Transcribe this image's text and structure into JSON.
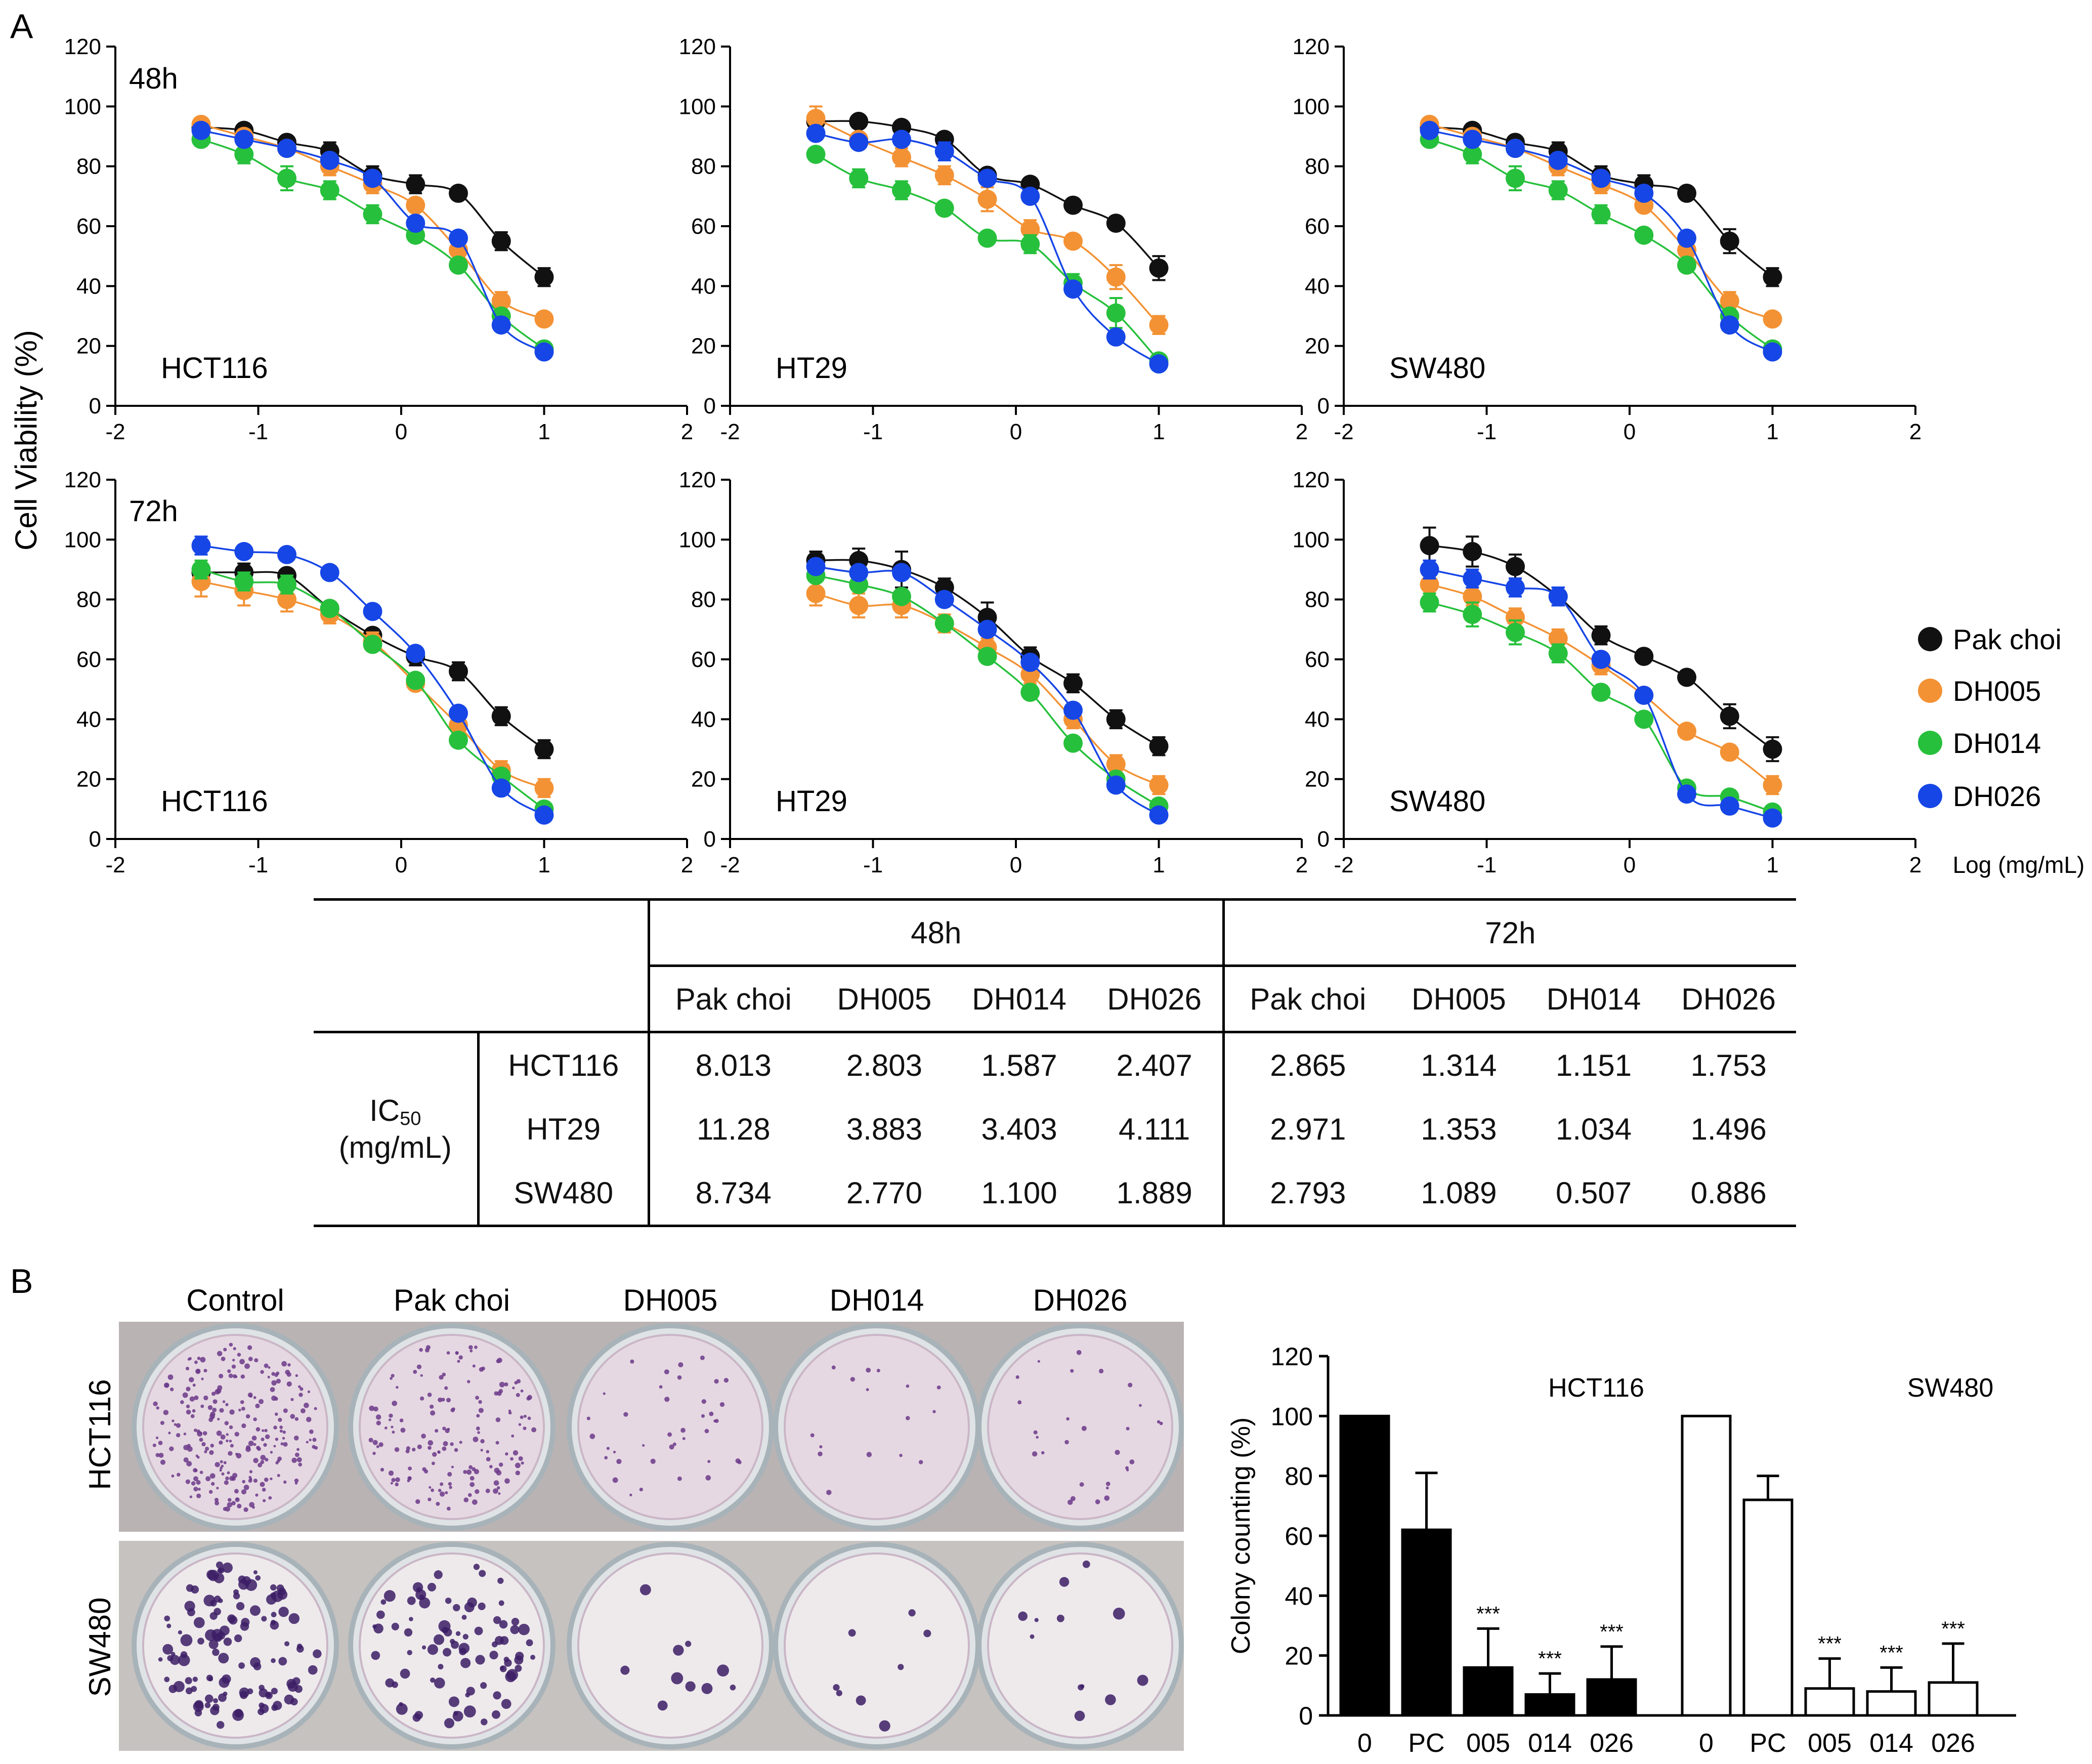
{
  "panel_labels": {
    "a": "A",
    "b": "B"
  },
  "y_axis_label": "Cell Viability (%)",
  "x_axis_label": "Log (mg/mL)",
  "time_labels": {
    "h48": "48h",
    "h72": "72h"
  },
  "legend": [
    {
      "name": "Pak choi",
      "color": "#111111"
    },
    {
      "name": "DH005",
      "color": "#f39234"
    },
    {
      "name": "DH014",
      "color": "#27c03c"
    },
    {
      "name": "DH026",
      "color": "#1646e6"
    }
  ],
  "ic50_table": {
    "groups": [
      "48h",
      "72h"
    ],
    "columns": [
      "Pak choi",
      "DH005",
      "DH014",
      "DH026",
      "Pak choi",
      "DH005",
      "DH014",
      "DH026"
    ],
    "row_header_main": "IC",
    "row_header_sub": "50",
    "row_header_unit": "(mg/mL)",
    "rows": [
      {
        "cell": "HCT116",
        "values": [
          "8.013",
          "2.803",
          "1.587",
          "2.407",
          "2.865",
          "1.314",
          "1.151",
          "1.753"
        ]
      },
      {
        "cell": "HT29",
        "values": [
          "11.28",
          "3.883",
          "3.403",
          "4.111",
          "2.971",
          "1.353",
          "1.034",
          "1.496"
        ]
      },
      {
        "cell": "SW480",
        "values": [
          "8.734",
          "2.770",
          "1.100",
          "1.889",
          "2.793",
          "1.089",
          "0.507",
          "0.886"
        ]
      }
    ]
  },
  "photo": {
    "columns": [
      "Control",
      "Pak choi",
      "DH005",
      "DH014",
      "DH026"
    ],
    "rows": [
      "HCT116",
      "SW480"
    ],
    "colony_density": {
      "HCT116": [
        1.0,
        0.62,
        0.15,
        0.06,
        0.11
      ],
      "SW480": [
        1.0,
        0.72,
        0.08,
        0.07,
        0.1
      ]
    }
  },
  "chart_data": [
    {
      "type": "scatter",
      "id": "hct116-48h",
      "title": "HCT116",
      "time": "48h",
      "xlim": [
        -2,
        2
      ],
      "ylim": [
        0,
        120
      ],
      "xticks": [
        "-2",
        "-1",
        "0",
        "1",
        "2"
      ],
      "yticks": [
        "0",
        "20",
        "40",
        "60",
        "80",
        "100",
        "120"
      ],
      "x": [
        -1.4,
        -1.1,
        -0.8,
        -0.5,
        -0.2,
        0.1,
        0.4,
        0.7,
        1.0
      ],
      "series": [
        {
          "name": "Pak choi",
          "values": [
            93,
            92,
            88,
            85,
            77,
            74,
            71,
            55,
            43
          ],
          "err": [
            2,
            2,
            2,
            3,
            3,
            3,
            2,
            3,
            3
          ]
        },
        {
          "name": "DH005",
          "values": [
            94,
            90,
            86,
            80,
            74,
            67,
            52,
            35,
            29
          ],
          "err": [
            2,
            2,
            2,
            3,
            3,
            2,
            2,
            3,
            2
          ]
        },
        {
          "name": "DH014",
          "values": [
            89,
            84,
            76,
            72,
            64,
            57,
            47,
            30,
            19
          ],
          "err": [
            2,
            3,
            4,
            3,
            3,
            2,
            2,
            2,
            2
          ]
        },
        {
          "name": "DH026",
          "values": [
            92,
            89,
            86,
            82,
            76,
            61,
            56,
            27,
            18
          ],
          "err": [
            2,
            2,
            2,
            2,
            2,
            2,
            2,
            2,
            1
          ]
        }
      ]
    },
    {
      "type": "scatter",
      "id": "ht29-48h",
      "title": "HT29",
      "time": "48h",
      "xlim": [
        -2,
        2
      ],
      "ylim": [
        0,
        120
      ],
      "xticks": [
        "-2",
        "-1",
        "0",
        "1",
        "2"
      ],
      "yticks": [
        "0",
        "20",
        "40",
        "60",
        "80",
        "100",
        "120"
      ],
      "x": [
        -1.4,
        -1.1,
        -0.8,
        -0.5,
        -0.2,
        0.1,
        0.4,
        0.7,
        1.0
      ],
      "series": [
        {
          "name": "Pak choi",
          "values": [
            95,
            95,
            93,
            89,
            77,
            74,
            67,
            61,
            46
          ],
          "err": [
            3,
            2,
            2,
            2,
            2,
            2,
            2,
            2,
            4
          ]
        },
        {
          "name": "DH005",
          "values": [
            96,
            89,
            83,
            77,
            69,
            59,
            55,
            43,
            27
          ],
          "err": [
            4,
            2,
            3,
            3,
            4,
            3,
            2,
            4,
            3
          ]
        },
        {
          "name": "DH014",
          "values": [
            84,
            76,
            72,
            66,
            56,
            54,
            41,
            31,
            15
          ],
          "err": [
            2,
            3,
            3,
            2,
            2,
            3,
            3,
            5,
            2
          ]
        },
        {
          "name": "DH026",
          "values": [
            91,
            88,
            89,
            85,
            76,
            70,
            39,
            23,
            14
          ],
          "err": [
            2,
            2,
            2,
            3,
            2,
            2,
            2,
            2,
            1
          ]
        }
      ]
    },
    {
      "type": "scatter",
      "id": "sw480-48h",
      "title": "SW480",
      "time": "48h",
      "xlim": [
        -2,
        2
      ],
      "ylim": [
        0,
        120
      ],
      "xticks": [
        "-2",
        "-1",
        "0",
        "1",
        "2"
      ],
      "yticks": [
        "0",
        "20",
        "40",
        "60",
        "80",
        "100",
        "120"
      ],
      "x": [
        -1.4,
        -1.1,
        -0.8,
        -0.5,
        -0.2,
        0.1,
        0.4,
        0.7,
        1.0
      ],
      "series": [
        {
          "name": "Pak choi",
          "values": [
            93,
            92,
            88,
            85,
            77,
            74,
            71,
            55,
            43
          ],
          "err": [
            2,
            2,
            2,
            3,
            3,
            3,
            2,
            4,
            3
          ]
        },
        {
          "name": "DH005",
          "values": [
            94,
            90,
            86,
            80,
            74,
            67,
            52,
            35,
            29
          ],
          "err": [
            2,
            2,
            2,
            3,
            3,
            2,
            2,
            3,
            2
          ]
        },
        {
          "name": "DH014",
          "values": [
            89,
            84,
            76,
            72,
            64,
            57,
            47,
            30,
            19
          ],
          "err": [
            2,
            3,
            4,
            3,
            3,
            2,
            2,
            2,
            2
          ]
        },
        {
          "name": "DH026",
          "values": [
            92,
            89,
            86,
            82,
            76,
            71,
            56,
            27,
            18
          ],
          "err": [
            2,
            2,
            2,
            2,
            2,
            2,
            2,
            2,
            1
          ]
        }
      ]
    },
    {
      "type": "scatter",
      "id": "hct116-72h",
      "title": "HCT116",
      "time": "72h",
      "xlim": [
        -2,
        2
      ],
      "ylim": [
        0,
        120
      ],
      "xticks": [
        "-2",
        "-1",
        "0",
        "1",
        "2"
      ],
      "yticks": [
        "0",
        "20",
        "40",
        "60",
        "80",
        "100",
        "120"
      ],
      "x": [
        -1.4,
        -1.1,
        -0.8,
        -0.5,
        -0.2,
        0.1,
        0.4,
        0.7,
        1.0
      ],
      "series": [
        {
          "name": "Pak choi",
          "values": [
            89,
            89,
            88,
            77,
            68,
            61,
            56,
            41,
            30
          ],
          "err": [
            3,
            3,
            2,
            2,
            2,
            3,
            3,
            3,
            3
          ]
        },
        {
          "name": "DH005",
          "values": [
            86,
            83,
            80,
            75,
            66,
            52,
            38,
            23,
            17
          ],
          "err": [
            5,
            5,
            4,
            3,
            3,
            2,
            3,
            3,
            3
          ]
        },
        {
          "name": "DH014",
          "values": [
            90,
            86,
            85,
            77,
            65,
            53,
            33,
            21,
            10
          ],
          "err": [
            3,
            3,
            3,
            2,
            2,
            2,
            2,
            2,
            2
          ]
        },
        {
          "name": "DH026",
          "values": [
            98,
            96,
            95,
            89,
            76,
            62,
            42,
            17,
            8
          ],
          "err": [
            3,
            2,
            2,
            2,
            2,
            2,
            2,
            2,
            1
          ]
        }
      ]
    },
    {
      "type": "scatter",
      "id": "ht29-72h",
      "title": "HT29",
      "time": "72h",
      "xlim": [
        -2,
        2
      ],
      "ylim": [
        0,
        120
      ],
      "xticks": [
        "-2",
        "-1",
        "0",
        "1",
        "2"
      ],
      "yticks": [
        "0",
        "20",
        "40",
        "60",
        "80",
        "100",
        "120"
      ],
      "x": [
        -1.4,
        -1.1,
        -0.8,
        -0.5,
        -0.2,
        0.1,
        0.4,
        0.7,
        1.0
      ],
      "series": [
        {
          "name": "Pak choi",
          "values": [
            93,
            93,
            90,
            84,
            74,
            61,
            52,
            40,
            31
          ],
          "err": [
            3,
            4,
            6,
            3,
            5,
            3,
            3,
            3,
            3
          ]
        },
        {
          "name": "DH005",
          "values": [
            82,
            78,
            78,
            72,
            64,
            55,
            40,
            25,
            18
          ],
          "err": [
            4,
            4,
            4,
            3,
            3,
            3,
            3,
            3,
            3
          ]
        },
        {
          "name": "DH014",
          "values": [
            88,
            85,
            81,
            72,
            61,
            49,
            32,
            20,
            11
          ],
          "err": [
            2,
            2,
            2,
            2,
            2,
            2,
            2,
            2,
            2
          ]
        },
        {
          "name": "DH026",
          "values": [
            91,
            89,
            89,
            80,
            70,
            59,
            43,
            18,
            8
          ],
          "err": [
            2,
            2,
            2,
            2,
            2,
            2,
            2,
            2,
            1
          ]
        }
      ]
    },
    {
      "type": "scatter",
      "id": "sw480-72h",
      "title": "SW480",
      "time": "72h",
      "xlim": [
        -2,
        2
      ],
      "ylim": [
        0,
        120
      ],
      "xticks": [
        "-2",
        "-1",
        "0",
        "1",
        "2"
      ],
      "yticks": [
        "0",
        "20",
        "40",
        "60",
        "80",
        "100",
        "120"
      ],
      "x": [
        -1.4,
        -1.1,
        -0.8,
        -0.5,
        -0.2,
        0.1,
        0.4,
        0.7,
        1.0
      ],
      "series": [
        {
          "name": "Pak choi",
          "values": [
            98,
            96,
            91,
            81,
            68,
            61,
            54,
            41,
            30
          ],
          "err": [
            6,
            5,
            4,
            3,
            3,
            2,
            2,
            4,
            4
          ]
        },
        {
          "name": "DH005",
          "values": [
            85,
            81,
            74,
            67,
            58,
            48,
            36,
            29,
            18
          ],
          "err": [
            3,
            3,
            3,
            3,
            3,
            2,
            2,
            2,
            3
          ]
        },
        {
          "name": "DH014",
          "values": [
            79,
            75,
            69,
            62,
            49,
            40,
            17,
            14,
            9
          ],
          "err": [
            3,
            4,
            4,
            3,
            2,
            2,
            2,
            2,
            1
          ]
        },
        {
          "name": "DH026",
          "values": [
            90,
            87,
            84,
            81,
            60,
            48,
            15,
            11,
            7
          ],
          "err": [
            3,
            3,
            3,
            3,
            2,
            2,
            2,
            2,
            1
          ]
        }
      ]
    },
    {
      "type": "bar",
      "id": "colony-counting",
      "ylabel": "Colony counting (%)",
      "ylim": [
        0,
        120
      ],
      "yticks": [
        "0",
        "20",
        "40",
        "60",
        "80",
        "100",
        "120"
      ],
      "groups": [
        {
          "name": "HCT116",
          "fill": "filled",
          "categories": [
            "0",
            "PC",
            "005",
            "014",
            "026"
          ],
          "values": [
            100,
            62,
            16,
            7,
            12
          ],
          "err": [
            0,
            19,
            13,
            7,
            11
          ],
          "sig": [
            "",
            "",
            "***",
            "***",
            "***"
          ]
        },
        {
          "name": "SW480",
          "fill": "open",
          "categories": [
            "0",
            "PC",
            "005",
            "014",
            "026"
          ],
          "values": [
            100,
            72,
            9,
            8,
            11
          ],
          "err": [
            0,
            8,
            10,
            8,
            13
          ],
          "sig": [
            "",
            "",
            "***",
            "***",
            "***"
          ]
        }
      ]
    }
  ]
}
